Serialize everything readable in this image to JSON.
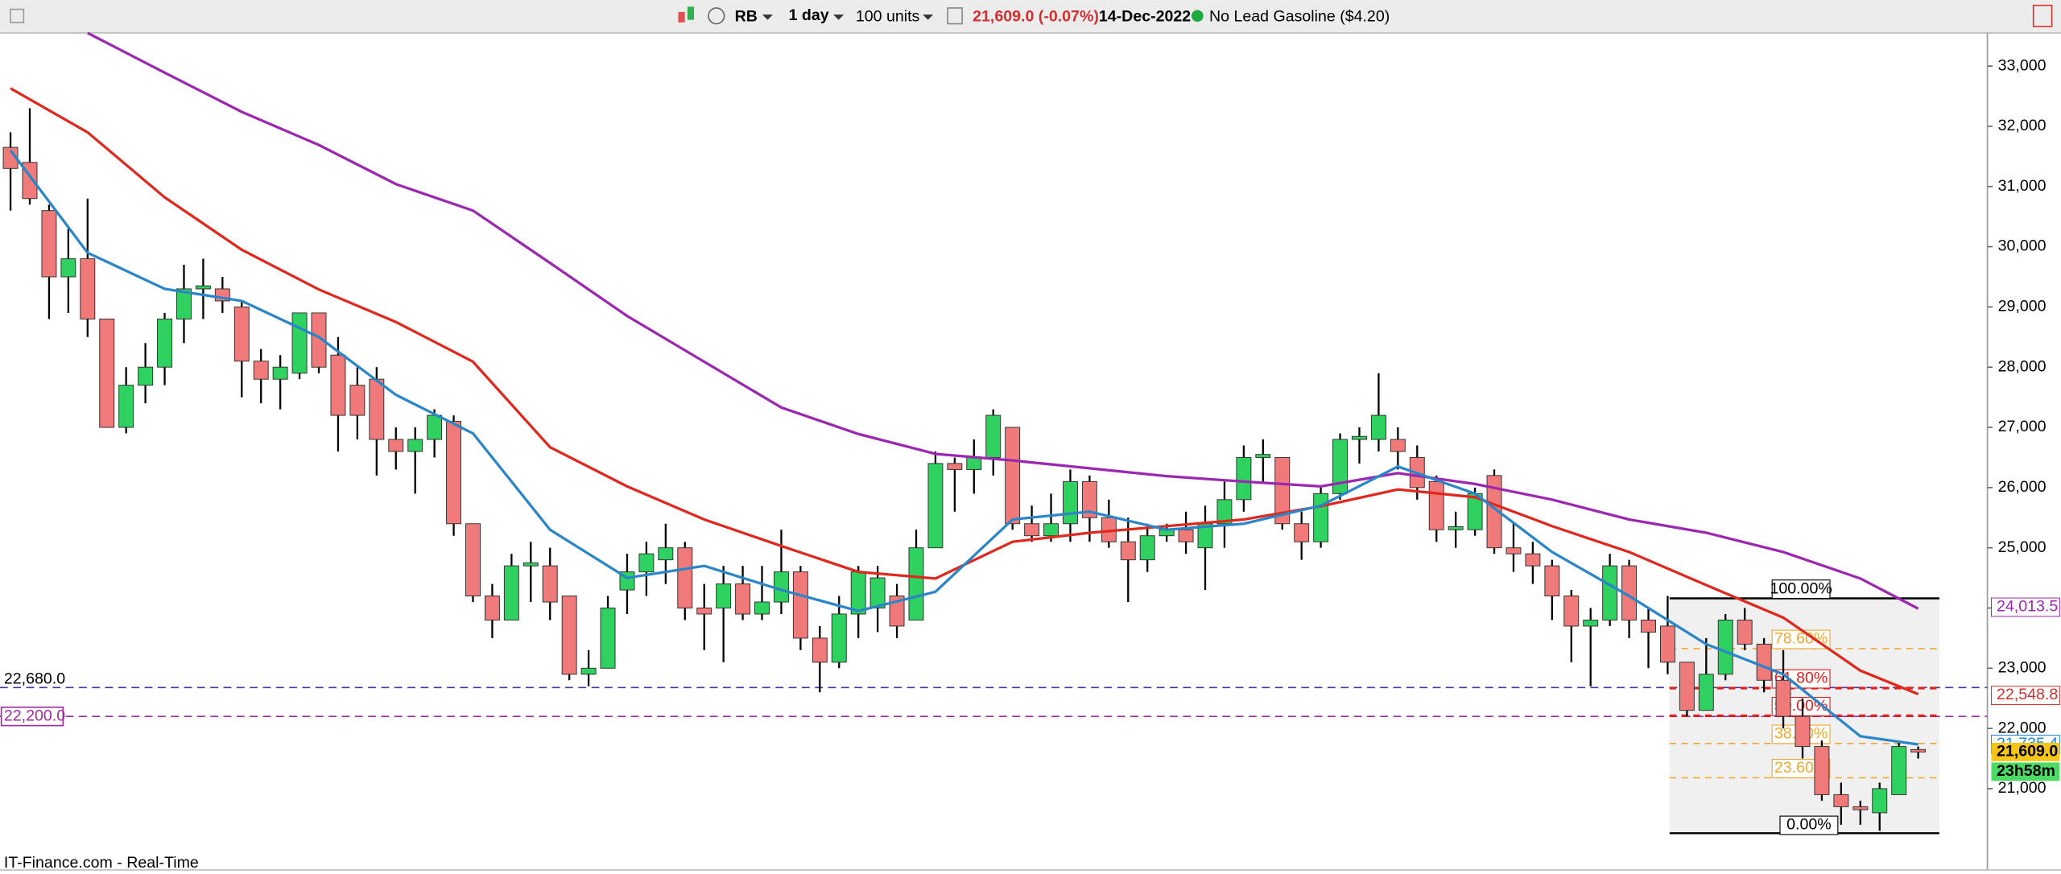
{
  "toolbar": {
    "symbol": "RB",
    "period": "1 day",
    "units": "100 units",
    "price": "21,609.0 (-0.07%)",
    "date": "14-Dec-2022",
    "instrument": "No Lead Gasoline ($4.20)"
  },
  "footer": "IT-Finance.com - Real-Time",
  "chart_data": {
    "type": "candlestick",
    "up_color": "#2fd160",
    "down_color": "#f07a7a",
    "ylim": [
      19650,
      33550
    ],
    "yticks": [
      {
        "value": 21000,
        "label": "21,000"
      },
      {
        "value": 22000,
        "label": "22,000"
      },
      {
        "value": 23000,
        "label": "23,000"
      },
      {
        "value": 24000,
        "label": "24,000"
      },
      {
        "value": 25000,
        "label": "25,000"
      },
      {
        "value": 26000,
        "label": "26,000"
      },
      {
        "value": 27000,
        "label": "27,000"
      },
      {
        "value": 28000,
        "label": "28,000"
      },
      {
        "value": 29000,
        "label": "29,000"
      },
      {
        "value": 30000,
        "label": "30,000"
      },
      {
        "value": 31000,
        "label": "31,000"
      },
      {
        "value": 32000,
        "label": "32,000"
      },
      {
        "value": 33000,
        "label": "33,000"
      }
    ],
    "ohlc": [
      [
        31650,
        31900,
        30600,
        31300
      ],
      [
        31400,
        32300,
        30700,
        30800
      ],
      [
        30600,
        30700,
        28800,
        29500
      ],
      [
        29500,
        30300,
        28900,
        29800
      ],
      [
        29800,
        30800,
        28500,
        28800
      ],
      [
        28800,
        28800,
        27000,
        27000
      ],
      [
        27000,
        28000,
        26900,
        27700
      ],
      [
        27700,
        28400,
        27400,
        28000
      ],
      [
        28000,
        28900,
        27700,
        28800
      ],
      [
        28800,
        29700,
        28400,
        29300
      ],
      [
        29300,
        29800,
        28800,
        29350
      ],
      [
        29300,
        29500,
        28900,
        29100
      ],
      [
        29000,
        29100,
        27500,
        28100
      ],
      [
        28100,
        28300,
        27400,
        27800
      ],
      [
        27800,
        28200,
        27300,
        28000
      ],
      [
        27900,
        28900,
        27800,
        28900
      ],
      [
        28900,
        28900,
        27900,
        28000
      ],
      [
        28200,
        28500,
        26600,
        27200
      ],
      [
        27700,
        28000,
        26800,
        27200
      ],
      [
        27800,
        28000,
        26200,
        26800
      ],
      [
        26800,
        27000,
        26300,
        26600
      ],
      [
        26600,
        27000,
        25900,
        26800
      ],
      [
        26800,
        27300,
        26500,
        27200
      ],
      [
        27100,
        27200,
        25200,
        25400
      ],
      [
        25400,
        25400,
        24100,
        24200
      ],
      [
        24200,
        24400,
        23500,
        23800
      ],
      [
        23800,
        24900,
        23800,
        24700
      ],
      [
        24700,
        25100,
        24100,
        24750
      ],
      [
        24700,
        25000,
        23800,
        24100
      ],
      [
        24200,
        24200,
        22800,
        22900
      ],
      [
        22900,
        23300,
        22700,
        23000
      ],
      [
        23000,
        24200,
        23000,
        24000
      ],
      [
        24300,
        24900,
        23900,
        24600
      ],
      [
        24600,
        25100,
        24200,
        24900
      ],
      [
        24800,
        25400,
        24400,
        25000
      ],
      [
        25000,
        25100,
        23800,
        24000
      ],
      [
        24000,
        24400,
        23300,
        23900
      ],
      [
        24000,
        24700,
        23100,
        24400
      ],
      [
        24400,
        24700,
        23800,
        23900
      ],
      [
        23900,
        24700,
        23800,
        24100
      ],
      [
        24100,
        25300,
        23900,
        24600
      ],
      [
        24600,
        24700,
        23300,
        23500
      ],
      [
        23500,
        23700,
        22600,
        23100
      ],
      [
        23100,
        24200,
        23000,
        23900
      ],
      [
        23900,
        24700,
        23500,
        24600
      ],
      [
        24000,
        24700,
        23600,
        24500
      ],
      [
        24200,
        24400,
        23500,
        23700
      ],
      [
        23800,
        25300,
        23800,
        25000
      ],
      [
        25000,
        26600,
        25000,
        26400
      ],
      [
        26400,
        26500,
        25600,
        26300
      ],
      [
        26300,
        26800,
        25900,
        26500
      ],
      [
        26500,
        27300,
        26200,
        27200
      ],
      [
        27000,
        27000,
        25300,
        25400
      ],
      [
        25400,
        25700,
        25100,
        25200
      ],
      [
        25200,
        25900,
        25100,
        25400
      ],
      [
        25400,
        26300,
        25100,
        26100
      ],
      [
        26100,
        26200,
        25100,
        25500
      ],
      [
        25500,
        25800,
        25000,
        25100
      ],
      [
        25100,
        25500,
        24100,
        24800
      ],
      [
        24800,
        25400,
        24600,
        25200
      ],
      [
        25200,
        25400,
        25100,
        25300
      ],
      [
        25300,
        25600,
        24900,
        25100
      ],
      [
        25000,
        25700,
        24300,
        25400
      ],
      [
        25400,
        26100,
        25000,
        25800
      ],
      [
        25800,
        26700,
        25600,
        26500
      ],
      [
        26500,
        26800,
        26100,
        26550
      ],
      [
        26500,
        26500,
        25300,
        25400
      ],
      [
        25400,
        25600,
        24800,
        25100
      ],
      [
        25100,
        26000,
        25000,
        25900
      ],
      [
        25900,
        26900,
        25800,
        26800
      ],
      [
        26800,
        27000,
        26400,
        26850
      ],
      [
        26800,
        27900,
        26600,
        27200
      ],
      [
        26800,
        27000,
        26300,
        26600
      ],
      [
        26500,
        26700,
        25800,
        26000
      ],
      [
        26100,
        26200,
        25100,
        25300
      ],
      [
        25300,
        25600,
        25000,
        25350
      ],
      [
        25300,
        26000,
        25200,
        25900
      ],
      [
        26200,
        26300,
        24900,
        25000
      ],
      [
        25000,
        25400,
        24600,
        24900
      ],
      [
        24900,
        25100,
        24400,
        24700
      ],
      [
        24700,
        24800,
        23800,
        24200
      ],
      [
        24200,
        24300,
        23100,
        23700
      ],
      [
        23700,
        24000,
        22700,
        23800
      ],
      [
        23800,
        24900,
        23700,
        24700
      ],
      [
        24700,
        24800,
        23500,
        23800
      ],
      [
        23800,
        24000,
        23000,
        23600
      ],
      [
        23700,
        24200,
        22900,
        23100
      ],
      [
        23100,
        23100,
        22200,
        22300
      ],
      [
        22300,
        23500,
        22300,
        22900
      ],
      [
        22900,
        23900,
        22800,
        23800
      ],
      [
        23800,
        24000,
        23300,
        23400
      ],
      [
        23400,
        23500,
        22600,
        22800
      ],
      [
        22800,
        23300,
        22000,
        22200
      ],
      [
        22200,
        22500,
        21500,
        21700
      ],
      [
        21700,
        21800,
        20800,
        20900
      ],
      [
        20900,
        21100,
        20400,
        20700
      ],
      [
        20700,
        20800,
        20400,
        20650
      ],
      [
        20600,
        21100,
        20300,
        21000
      ],
      [
        20900,
        21800,
        20900,
        21700
      ],
      [
        21650,
        21700,
        21500,
        21609
      ]
    ],
    "lines": [
      {
        "color": "#9c27b0",
        "x": [
          4,
          8,
          12,
          16,
          20,
          24,
          28,
          32,
          36,
          40,
          44,
          48,
          52,
          56,
          60,
          64,
          68,
          72,
          76,
          80,
          84,
          88,
          92,
          96,
          99
        ],
        "values": [
          33550,
          32890,
          32240,
          31690,
          31040,
          30600,
          29730,
          28850,
          28090,
          27330,
          26890,
          26560,
          26450,
          26320,
          26190,
          26100,
          26020,
          26240,
          26060,
          25800,
          25470,
          25250,
          24930,
          24490,
          23990
        ]
      },
      {
        "color": "#e0281e",
        "x": [
          0,
          4,
          8,
          12,
          16,
          20,
          24,
          28,
          32,
          36,
          40,
          44,
          48,
          52,
          56,
          60,
          64,
          68,
          72,
          76,
          80,
          84,
          88,
          92,
          96,
          99
        ],
        "values": [
          32630,
          31900,
          30820,
          29950,
          29290,
          28750,
          28090,
          26670,
          26020,
          25470,
          25030,
          24600,
          24490,
          25100,
          25250,
          25360,
          25470,
          25690,
          25970,
          25840,
          25360,
          24930,
          24380,
          23840,
          22960,
          22570
        ]
      },
      {
        "color": "#2a86c8",
        "x": [
          0,
          4,
          8,
          12,
          16,
          20,
          24,
          28,
          32,
          36,
          40,
          44,
          48,
          52,
          56,
          60,
          64,
          68,
          72,
          76,
          80,
          84,
          88,
          92,
          96,
          99
        ],
        "values": [
          31600,
          29900,
          29300,
          29100,
          28500,
          27540,
          26900,
          25300,
          24500,
          24700,
          24300,
          23950,
          24270,
          25470,
          25600,
          25300,
          25400,
          25700,
          26350,
          25900,
          24930,
          24200,
          23400,
          22900,
          21870,
          21735
        ]
      }
    ],
    "levels": [
      {
        "value": 22680,
        "label": "22,680.0",
        "color": "#3a3aa0"
      },
      {
        "value": 22200,
        "label": "22,200.0",
        "color": "#a02aa0"
      }
    ],
    "fib": {
      "high": 24160,
      "low": 20260,
      "levels": [
        {
          "value": 100,
          "label": "100.00%",
          "color": "#000000"
        },
        {
          "value": 78.6,
          "label": "78.60%",
          "color": "#f0a830"
        },
        {
          "value": 61.8,
          "label": "61.80%",
          "color": "#e02020"
        },
        {
          "value": 50,
          "label": "50.00%",
          "color": "#e02020"
        },
        {
          "value": 38.2,
          "label": "38.20%",
          "color": "#f0a830"
        },
        {
          "value": 23.6,
          "label": "23.60%",
          "color": "#f0a830"
        },
        {
          "value": 0,
          "label": "0.00%",
          "color": "#000000"
        }
      ]
    },
    "price_tags": [
      {
        "value": 24013.5,
        "label": "24,013.5",
        "color": "#9c27b0",
        "bg": "#ffffff"
      },
      {
        "value": 22548.8,
        "label": "22,548.8",
        "color": "#d32f2f",
        "bg": "#ffffff"
      },
      {
        "value": 21735.4,
        "label": "21,735.4",
        "color": "#1e88e5",
        "bg": "#ffffff"
      },
      {
        "value": 21609,
        "label": "21,609.0",
        "color": "#000000",
        "bg": "#f5c518"
      }
    ],
    "countdown": "23h58m"
  }
}
